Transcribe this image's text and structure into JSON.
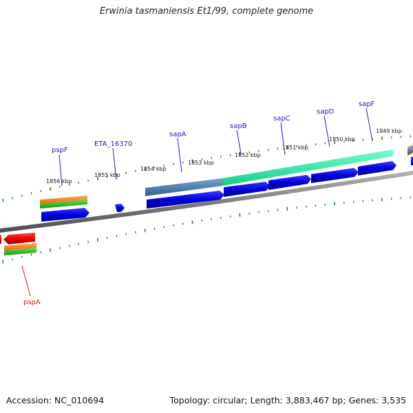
{
  "title": "Erwinia tasmaniensis Et1/99, complete genome",
  "footer": {
    "accession": "Accession: NC_010694",
    "summary": "Topology: circular; Length: 3,883,467 bp; Genes: 3,535"
  },
  "colors": {
    "gene_forward": "#0000dd",
    "gene_reverse": "#ee0000",
    "label_forward": "#1a1acc",
    "label_reverse": "#dd1111",
    "backbone": "#808080",
    "tick": "#1f8f1f",
    "track_orange": "#f07a10",
    "track_green": "#22bb22",
    "track_teal": "#22ee99",
    "track_steel": "#4a7aa8"
  },
  "scale_labels": [
    "1856 kbp",
    "1855 kbp",
    "1854 kbp",
    "1853 kbp",
    "1852 kbp",
    "1851 kbp",
    "1850 kbp",
    "1849 kbp"
  ],
  "gene_labels": [
    {
      "name": "pspF",
      "strand": "forward"
    },
    {
      "name": "ETA_16370",
      "strand": "forward"
    },
    {
      "name": "sapA",
      "strand": "forward"
    },
    {
      "name": "sapB",
      "strand": "forward"
    },
    {
      "name": "sapC",
      "strand": "forward"
    },
    {
      "name": "sapD",
      "strand": "forward"
    },
    {
      "name": "sapF",
      "strand": "forward"
    },
    {
      "name": "pspA",
      "strand": "reverse"
    }
  ]
}
